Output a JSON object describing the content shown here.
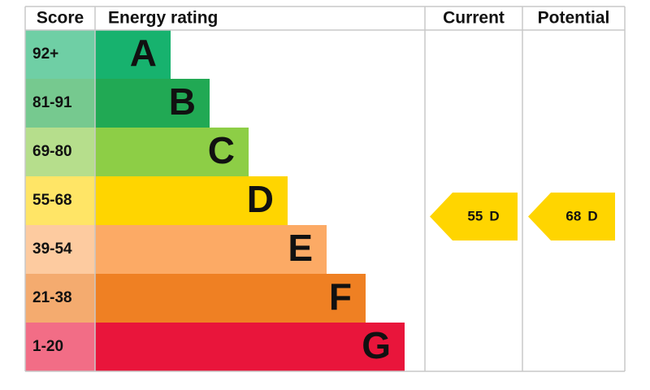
{
  "header": {
    "score": "Score",
    "rating": "Energy rating",
    "current": "Current",
    "potential": "Potential"
  },
  "bands": [
    {
      "score": "92+",
      "letter": "A",
      "color": "#17b26e",
      "score_color": "#6fcfa5"
    },
    {
      "score": "81-91",
      "letter": "B",
      "color": "#21a954",
      "score_color": "#76c98f"
    },
    {
      "score": "69-80",
      "letter": "C",
      "color": "#8dce46",
      "score_color": "#b6de8c"
    },
    {
      "score": "55-68",
      "letter": "D",
      "color": "#ffd500",
      "score_color": "#ffe566"
    },
    {
      "score": "39-54",
      "letter": "E",
      "color": "#fcaa65",
      "score_color": "#fdcba0"
    },
    {
      "score": "21-38",
      "letter": "F",
      "color": "#ef8023",
      "score_color": "#f4ab6f"
    },
    {
      "score": "1-20",
      "letter": "G",
      "color": "#e9153b",
      "score_color": "#f26d86"
    }
  ],
  "current": {
    "value": 55,
    "letter": "D"
  },
  "potential": {
    "value": 68,
    "letter": "D"
  }
}
